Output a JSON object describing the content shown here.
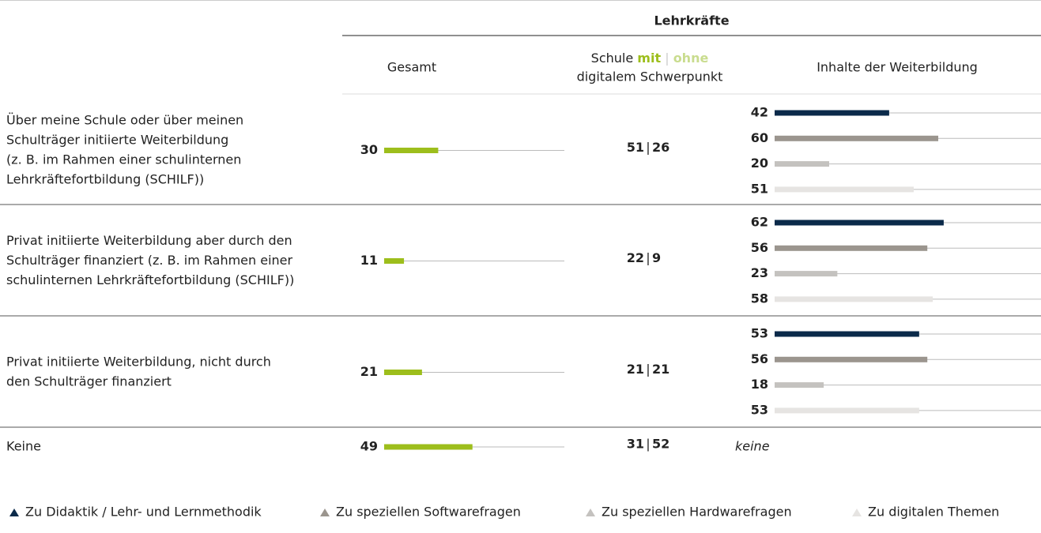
{
  "header": {
    "group": "Lehrkräfte",
    "col_total": "Gesamt",
    "col_school": {
      "prefix": "Schule",
      "mit": "mit",
      "separator": "|",
      "ohne": "ohne",
      "line2": "digitalem Schwerpunkt"
    },
    "col_content": "Inhalte der Weiterbildung"
  },
  "xlim": [
    0,
    100
  ],
  "colors": {
    "total": "#9dbe1c",
    "mit": "#9dbe1c",
    "ohne": "#c9dc8e"
  },
  "rows": [
    {
      "label": [
        "Über meine Schule oder über meinen",
        "Schulträger initiierte Weiterbildung",
        "(z. B. im Rahmen einer schulinternen",
        "Lehrkräftefortbildung (SCHILF))"
      ],
      "total": 30,
      "mit": 51,
      "ohne": 26,
      "content": [
        42,
        60,
        20,
        51
      ]
    },
    {
      "label": [
        "Privat initiierte Weiterbildung aber durch den",
        "Schulträger finanziert (z. B. im Rahmen einer",
        "schulinternen Lehrkräftefortbildung (SCHILF))"
      ],
      "total": 11,
      "mit": 22,
      "ohne": 9,
      "content": [
        62,
        56,
        23,
        58
      ]
    },
    {
      "label": [
        "Privat initiierte Weiterbildung, nicht durch",
        "den Schulträger finanziert"
      ],
      "total": 21,
      "mit": 21,
      "ohne": 21,
      "content": [
        53,
        56,
        18,
        53
      ]
    },
    {
      "label": [
        "Keine"
      ],
      "total": 49,
      "mit": 31,
      "ohne": 52,
      "content_note": "keine"
    }
  ],
  "legend": [
    {
      "name": "Zu Didaktik / Lehr- und Lernmethodik",
      "color": "#0b2a4a"
    },
    {
      "name": "Zu speziellen Softwarefragen",
      "color": "#9b958e"
    },
    {
      "name": "Zu speziellen Hardwarefragen",
      "color": "#c4c2bf"
    },
    {
      "name": "Zu digitalen Themen",
      "color": "#e6e4e2"
    }
  ]
}
